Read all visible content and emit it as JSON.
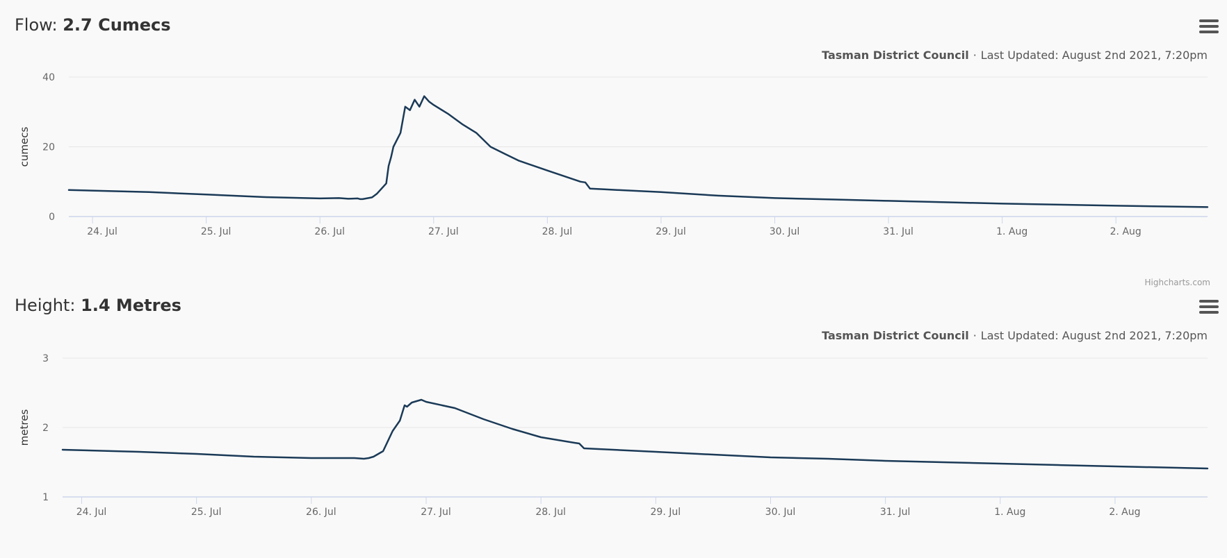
{
  "credit": "Highcharts.com",
  "colors": {
    "line": "#1b3a57",
    "grid": "#e6e6e6",
    "axis": "#ccd6eb",
    "text": "#666666"
  },
  "charts": [
    {
      "title_prefix": "Flow:",
      "title_value": "2.7 Cumecs",
      "org": "Tasman District Council",
      "separator": "·",
      "updated": "Last Updated: August 2nd 2021, 7:20pm",
      "menu_icon": "hamburger-menu-icon"
    },
    {
      "title_prefix": "Height:",
      "title_value": "1.4 Metres",
      "org": "Tasman District Council",
      "separator": "·",
      "updated": "Last Updated: August 2nd 2021, 7:20pm",
      "menu_icon": "hamburger-menu-icon"
    }
  ],
  "chart_data": [
    {
      "type": "line",
      "title": "Flow: 2.7 Cumecs",
      "ylabel": "cumecs",
      "xlabel": "",
      "ylim": [
        0,
        40
      ],
      "yticks": [
        "0",
        "20",
        "40"
      ],
      "xlim": [
        "2021-07-23T19:00",
        "2021-08-02T19:20"
      ],
      "xtick_dates": [
        "2021-07-24",
        "2021-07-25",
        "2021-07-26",
        "2021-07-27",
        "2021-07-28",
        "2021-07-29",
        "2021-07-30",
        "2021-07-31",
        "2021-08-01",
        "2021-08-02"
      ],
      "xtick_labels": [
        "24. Jul",
        "25. Jul",
        "26. Jul",
        "27. Jul",
        "28. Jul",
        "29. Jul",
        "30. Jul",
        "31. Jul",
        "1. Aug",
        "2. Aug"
      ],
      "grid": true,
      "legend": "none",
      "series": [
        {
          "x": [
            "2021-07-23T19:00",
            "2021-07-24T12:00",
            "2021-07-25T00:00",
            "2021-07-25T12:00",
            "2021-07-26T00:00",
            "2021-07-26T04:00",
            "2021-07-26T06:00",
            "2021-07-26T08:00",
            "2021-07-26T08:30",
            "2021-07-26T09:00",
            "2021-07-26T11:00",
            "2021-07-26T12:00",
            "2021-07-26T13:00",
            "2021-07-26T14:00",
            "2021-07-26T14:30",
            "2021-07-26T15:00",
            "2021-07-26T15:30",
            "2021-07-26T17:00",
            "2021-07-26T18:00",
            "2021-07-26T19:00",
            "2021-07-26T20:00",
            "2021-07-26T21:00",
            "2021-07-26T22:00",
            "2021-07-26T23:00",
            "2021-07-27T00:00",
            "2021-07-27T03:00",
            "2021-07-27T06:00",
            "2021-07-27T09:00",
            "2021-07-27T12:00",
            "2021-07-27T15:00",
            "2021-07-27T18:00",
            "2021-07-28T00:00",
            "2021-07-28T07:00",
            "2021-07-28T08:00",
            "2021-07-28T09:00",
            "2021-07-28T12:00",
            "2021-07-29T00:00",
            "2021-07-29T12:00",
            "2021-07-30T00:00",
            "2021-07-30T12:00",
            "2021-07-31T00:00",
            "2021-07-31T12:00",
            "2021-08-01T00:00",
            "2021-08-01T12:00",
            "2021-08-02T00:00",
            "2021-08-02T19:20"
          ],
          "y": [
            7.6,
            7.0,
            6.3,
            5.6,
            5.2,
            5.3,
            5.1,
            5.2,
            5.0,
            5.0,
            5.5,
            6.5,
            8.0,
            9.5,
            14.5,
            17,
            20,
            24,
            31.5,
            30.5,
            33.5,
            31.5,
            34.5,
            33.0,
            32,
            29.5,
            26.5,
            24,
            20,
            18,
            16,
            13.2,
            10,
            9.8,
            8.0,
            7.8,
            7.0,
            6.0,
            5.3,
            4.9,
            4.5,
            4.1,
            3.7,
            3.4,
            3.1,
            2.7
          ]
        }
      ]
    },
    {
      "type": "line",
      "title": "Height: 1.4 Metres",
      "ylabel": "metres",
      "xlabel": "",
      "ylim": [
        1,
        3
      ],
      "yticks": [
        "1",
        "2",
        "3"
      ],
      "xlim": [
        "2021-07-23T20:00",
        "2021-08-02T19:20"
      ],
      "xtick_dates": [
        "2021-07-24",
        "2021-07-25",
        "2021-07-26",
        "2021-07-27",
        "2021-07-28",
        "2021-07-29",
        "2021-07-30",
        "2021-07-31",
        "2021-08-01",
        "2021-08-02"
      ],
      "xtick_labels": [
        "24. Jul",
        "25. Jul",
        "26. Jul",
        "27. Jul",
        "28. Jul",
        "29. Jul",
        "30. Jul",
        "31. Jul",
        "1. Aug",
        "2. Aug"
      ],
      "grid": true,
      "legend": "none",
      "series": [
        {
          "x": [
            "2021-07-23T20:00",
            "2021-07-24T12:00",
            "2021-07-25T00:00",
            "2021-07-25T12:00",
            "2021-07-26T00:00",
            "2021-07-26T04:00",
            "2021-07-26T06:00",
            "2021-07-26T09:00",
            "2021-07-26T11:00",
            "2021-07-26T12:00",
            "2021-07-26T13:00",
            "2021-07-26T14:00",
            "2021-07-26T15:00",
            "2021-07-26T17:00",
            "2021-07-26T18:30",
            "2021-07-26T19:30",
            "2021-07-26T20:00",
            "2021-07-26T21:00",
            "2021-07-26T22:00",
            "2021-07-26T23:00",
            "2021-07-27T00:00",
            "2021-07-27T06:00",
            "2021-07-27T12:00",
            "2021-07-27T18:00",
            "2021-07-28T00:00",
            "2021-07-28T07:00",
            "2021-07-28T08:00",
            "2021-07-28T09:00",
            "2021-07-28T12:00",
            "2021-07-29T00:00",
            "2021-07-29T12:00",
            "2021-07-30T00:00",
            "2021-07-30T12:00",
            "2021-07-31T00:00",
            "2021-07-31T12:00",
            "2021-08-01T00:00",
            "2021-08-01T12:00",
            "2021-08-02T00:00",
            "2021-08-02T19:20"
          ],
          "y": [
            1.68,
            1.65,
            1.62,
            1.58,
            1.56,
            1.56,
            1.56,
            1.56,
            1.55,
            1.56,
            1.58,
            1.62,
            1.66,
            1.95,
            2.1,
            2.32,
            2.3,
            2.36,
            2.38,
            2.4,
            2.37,
            2.28,
            2.12,
            1.98,
            1.86,
            1.78,
            1.77,
            1.7,
            1.69,
            1.65,
            1.61,
            1.57,
            1.55,
            1.52,
            1.5,
            1.48,
            1.46,
            1.44,
            1.41
          ]
        }
      ]
    }
  ]
}
